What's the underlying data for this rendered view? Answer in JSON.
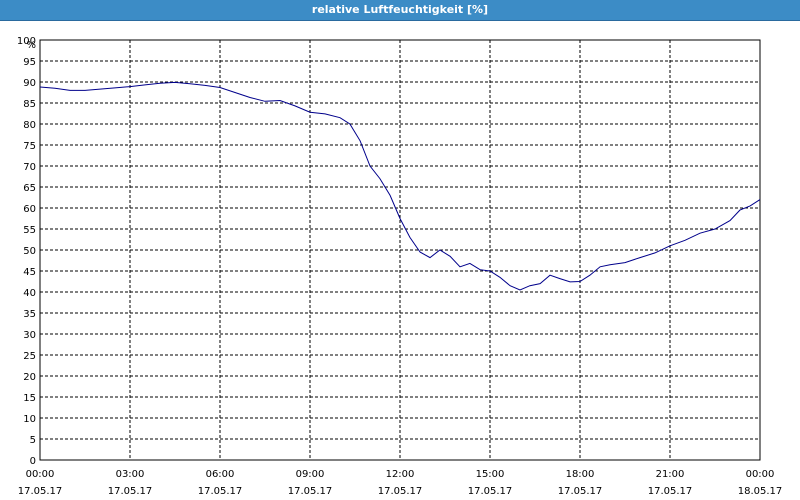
{
  "window": {
    "title": "relative Luftfeuchtigkeit [%]"
  },
  "chart_data": {
    "type": "line",
    "title": "relative Luftfeuchtigkeit [%]",
    "ylabel": "%",
    "ylim": [
      0,
      100
    ],
    "xlim_hours": [
      0,
      24
    ],
    "yticks": [
      "0",
      "5",
      "10",
      "15",
      "20",
      "25",
      "30",
      "35",
      "40",
      "45",
      "50",
      "55",
      "60",
      "65",
      "70",
      "75",
      "80",
      "85",
      "90",
      "95",
      "100"
    ],
    "xticks": [
      {
        "time": "00:00",
        "date": "17.05.17"
      },
      {
        "time": "03:00",
        "date": "17.05.17"
      },
      {
        "time": "06:00",
        "date": "17.05.17"
      },
      {
        "time": "09:00",
        "date": "17.05.17"
      },
      {
        "time": "12:00",
        "date": "17.05.17"
      },
      {
        "time": "15:00",
        "date": "17.05.17"
      },
      {
        "time": "18:00",
        "date": "17.05.17"
      },
      {
        "time": "21:00",
        "date": "17.05.17"
      },
      {
        "time": "00:00",
        "date": "18.05.17"
      }
    ],
    "grid": true,
    "line_color": "#00008b",
    "series": [
      {
        "x": [
          0,
          0.5,
          1,
          1.5,
          2,
          2.5,
          3,
          3.5,
          4,
          4.5,
          5,
          5.5,
          6,
          6.5,
          7,
          7.5,
          8,
          8.5,
          9,
          9.5,
          10,
          10.33,
          10.67,
          11,
          11.33,
          11.67,
          12,
          12.33,
          12.67,
          13,
          13.33,
          13.67,
          14,
          14.33,
          14.67,
          15,
          15.33,
          15.67,
          16,
          16.33,
          16.67,
          17,
          17.33,
          17.67,
          18,
          18.33,
          18.67,
          19,
          19.5,
          20,
          20.5,
          21,
          21.5,
          22,
          22.5,
          23,
          23.33,
          23.67,
          24
        ],
        "y": [
          88.8,
          88.5,
          88,
          88,
          88.3,
          88.6,
          88.9,
          89.3,
          89.7,
          89.9,
          89.6,
          89.2,
          88.7,
          87.5,
          86.3,
          85.4,
          85.6,
          84.3,
          82.8,
          82.4,
          81.5,
          80,
          76,
          70,
          67,
          63,
          57.5,
          53,
          49.5,
          48.2,
          50,
          48.5,
          46,
          46.8,
          45.3,
          45,
          43.5,
          41.5,
          40.5,
          41.5,
          42,
          44,
          43.2,
          42.4,
          42.5,
          44,
          46,
          46.5,
          47,
          48.2,
          49.3,
          51,
          52.3,
          54,
          55,
          57,
          59.5,
          60.5,
          62
        ]
      }
    ]
  }
}
